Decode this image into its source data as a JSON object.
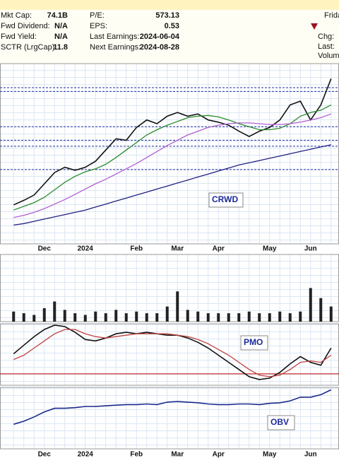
{
  "header": {
    "left": [
      {
        "label": "Mkt Cap:",
        "value": "74.1B"
      },
      {
        "label": "Fwd Dividend:",
        "value": "N/A"
      },
      {
        "label": "Fwd Yield:",
        "value": "N/A"
      },
      {
        "label": "SCTR (LrgCap):",
        "value": "11.8"
      }
    ],
    "middle": [
      {
        "label": "P/E:",
        "value": "573.13"
      },
      {
        "label": "EPS:",
        "value": "0.53"
      },
      {
        "label": "Last Earnings:",
        "value": "2024-06-04"
      },
      {
        "label": "Next Earnings:",
        "value": "2024-08-28"
      }
    ],
    "right": [
      "Frida",
      "Chg:",
      "Last:",
      "Volume"
    ]
  },
  "chart_data": [
    {
      "type": "line",
      "label": "CRWD",
      "categories": [
        null,
        null,
        null,
        "Dec",
        null,
        null,
        null,
        "2024",
        null,
        null,
        null,
        null,
        "Feb",
        null,
        null,
        null,
        "Mar",
        null,
        null,
        null,
        "Apr",
        null,
        null,
        null,
        null,
        "May",
        null,
        null,
        null,
        "Jun",
        null,
        null
      ],
      "ylim": [
        160,
        400
      ],
      "grid": true,
      "reference_lines": [
        368,
        363,
        316,
        298,
        290,
        259
      ],
      "reference_color": "#1f2fa0",
      "series": [
        {
          "color": "#111111",
          "values": [
            212,
            218,
            225,
            240,
            255,
            262,
            258,
            262,
            270,
            285,
            300,
            298,
            315,
            325,
            320,
            330,
            335,
            330,
            333,
            325,
            322,
            318,
            310,
            303,
            310,
            315,
            325,
            345,
            350,
            325,
            345,
            380
          ]
        },
        {
          "color": "#2a8a2a",
          "values": [
            205,
            210,
            215,
            222,
            232,
            242,
            250,
            256,
            260,
            266,
            275,
            285,
            295,
            305,
            312,
            318,
            323,
            328,
            330,
            331,
            329,
            325,
            320,
            316,
            312,
            312,
            314,
            320,
            330,
            335,
            338,
            345
          ]
        },
        {
          "color": "#b060d0",
          "values": [
            195,
            198,
            202,
            207,
            213,
            219,
            226,
            233,
            240,
            246,
            253,
            260,
            267,
            275,
            283,
            291,
            298,
            305,
            310,
            315,
            318,
            320,
            321,
            321,
            320,
            319,
            319,
            320,
            322,
            325,
            328,
            333
          ]
        },
        {
          "color": "#202080",
          "values": [
            185,
            187,
            190,
            193,
            196,
            199,
            202,
            205,
            209,
            213,
            217,
            221,
            225,
            229,
            233,
            237,
            241,
            245,
            249,
            253,
            257,
            261,
            265,
            268,
            271,
            274,
            277,
            280,
            283,
            286,
            289,
            292
          ]
        }
      ]
    },
    {
      "type": "bar",
      "ylim": [
        0,
        40
      ],
      "color": "#222222",
      "grid": true,
      "values": [
        6,
        5,
        4,
        8,
        12,
        7,
        5,
        4,
        6,
        5,
        7,
        5,
        6,
        5,
        5,
        9,
        18,
        7,
        6,
        5,
        5,
        5,
        5,
        6,
        5,
        5,
        6,
        5,
        6,
        20,
        14,
        9
      ]
    },
    {
      "type": "line",
      "label": "PMO",
      "ylim": [
        -0.8,
        3.5
      ],
      "grid": true,
      "reference_lines": [
        0
      ],
      "reference_color": "#c00000",
      "series": [
        {
          "color": "#111111",
          "values": [
            1.4,
            2.0,
            2.6,
            3.1,
            3.4,
            3.3,
            2.9,
            2.4,
            2.3,
            2.5,
            2.8,
            2.9,
            2.8,
            2.9,
            2.8,
            2.7,
            2.7,
            2.5,
            2.2,
            1.8,
            1.3,
            0.8,
            0.3,
            -0.2,
            -0.4,
            -0.3,
            0.1,
            0.7,
            1.2,
            0.8,
            0.6,
            1.8
          ]
        },
        {
          "color": "#c04040",
          "values": [
            1.0,
            1.3,
            1.8,
            2.3,
            2.8,
            3.1,
            3.1,
            2.8,
            2.6,
            2.5,
            2.6,
            2.7,
            2.8,
            2.8,
            2.8,
            2.8,
            2.7,
            2.6,
            2.4,
            2.1,
            1.7,
            1.3,
            0.8,
            0.3,
            -0.1,
            -0.2,
            -0.1,
            0.3,
            0.8,
            0.9,
            0.8,
            1.3
          ]
        }
      ]
    },
    {
      "type": "line",
      "label": "OBV",
      "ylim": [
        0,
        100
      ],
      "grid": true,
      "categories": [
        null,
        null,
        null,
        "Dec",
        null,
        null,
        null,
        "2024",
        null,
        null,
        null,
        null,
        "Feb",
        null,
        null,
        null,
        "Mar",
        null,
        null,
        null,
        "Apr",
        null,
        null,
        null,
        null,
        "May",
        null,
        null,
        null,
        "Jun",
        null,
        null
      ],
      "series": [
        {
          "color": "#1a2a8a",
          "values": [
            40,
            45,
            52,
            60,
            66,
            66,
            67,
            69,
            69,
            70,
            71,
            72,
            72,
            73,
            72,
            76,
            77,
            76,
            75,
            73,
            72,
            72,
            73,
            73,
            72,
            74,
            75,
            78,
            84,
            84,
            88,
            96
          ]
        }
      ]
    }
  ]
}
